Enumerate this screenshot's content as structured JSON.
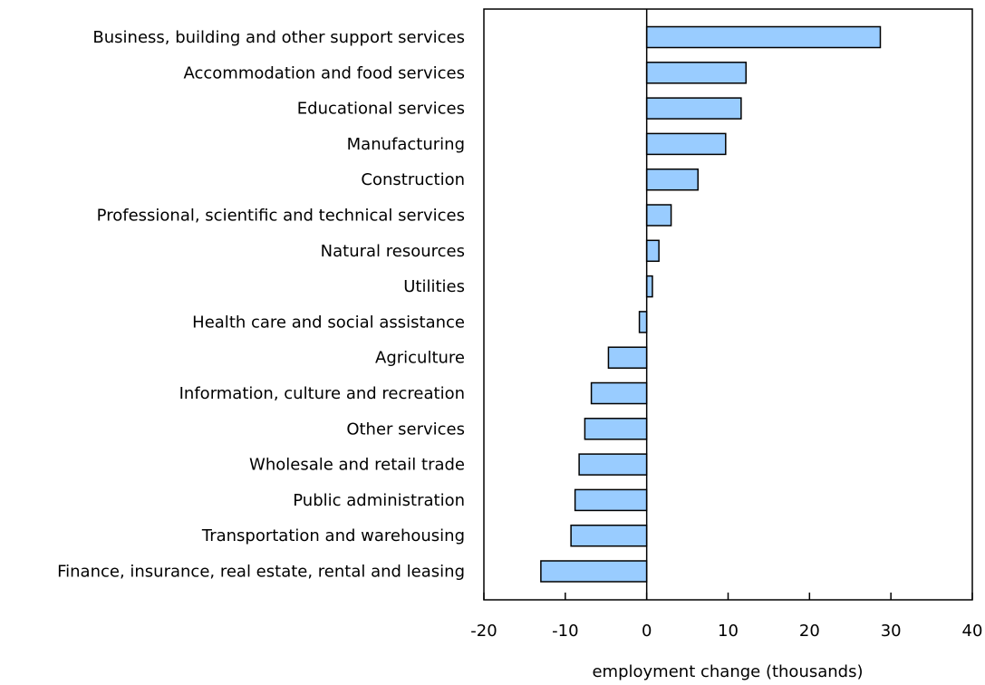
{
  "chart_data": {
    "type": "bar",
    "orientation": "horizontal",
    "title": "",
    "xlabel": "employment change (thousands)",
    "ylabel": "",
    "xlim": [
      -20,
      40
    ],
    "xticks": [
      -20,
      -10,
      0,
      10,
      20,
      30,
      40
    ],
    "grid": false,
    "bar_color": "#99ccff",
    "bar_edge_color": "#000000",
    "categories": [
      "Business, building and other support services",
      "Accommodation and food services",
      "Educational services",
      "Manufacturing",
      "Construction",
      "Professional, scientific and technical services",
      "Natural resources",
      "Utilities",
      "Health care and social assistance",
      "Agriculture",
      "Information, culture and recreation",
      "Other services",
      "Wholesale and retail trade",
      "Public administration",
      "Transportation and warehousing",
      "Finance, insurance, real estate, rental and leasing"
    ],
    "values": [
      28.7,
      12.2,
      11.6,
      9.7,
      6.3,
      3.0,
      1.5,
      0.7,
      -0.9,
      -4.7,
      -6.8,
      -7.6,
      -8.3,
      -8.8,
      -9.3,
      -13.0
    ]
  }
}
